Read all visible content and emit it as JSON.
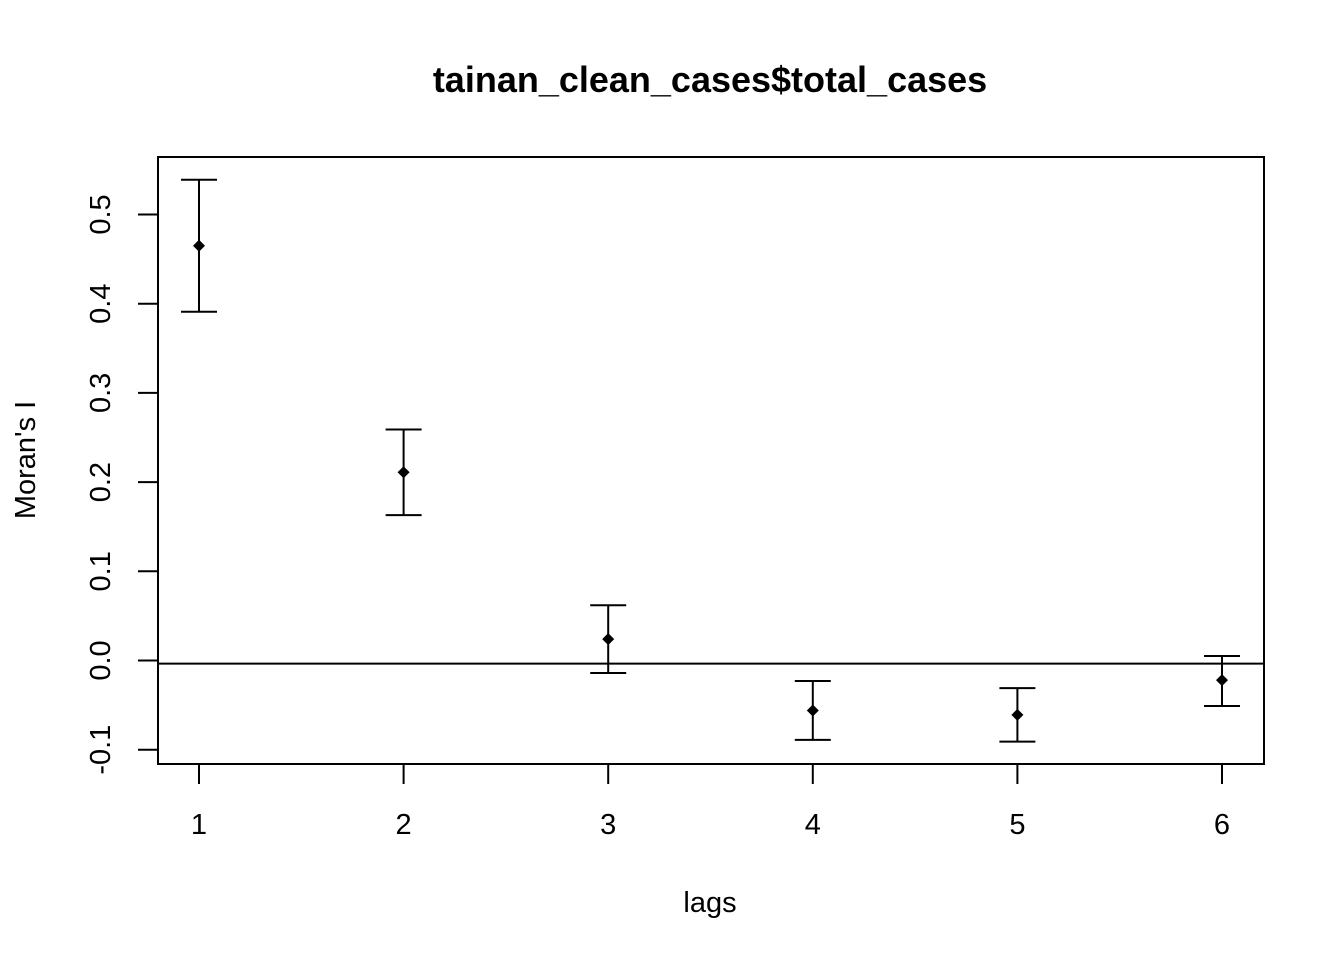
{
  "chart_data": {
    "type": "scatter",
    "title": "tainan_clean_cases$total_cases",
    "xlabel": "lags",
    "ylabel": "Moran's  I",
    "x_ticks": [
      "1",
      "2",
      "3",
      "4",
      "5",
      "6"
    ],
    "y_ticks": [
      "-0.1",
      "0.0",
      "0.1",
      "0.2",
      "0.3",
      "0.4",
      "0.5"
    ],
    "xlim": [
      0.8,
      6.2
    ],
    "ylim": [
      -0.115,
      0.565
    ],
    "reference_line": -0.0035,
    "points": [
      {
        "lag": 1,
        "value": 0.465,
        "lower": 0.391,
        "upper": 0.539
      },
      {
        "lag": 2,
        "value": 0.211,
        "lower": 0.163,
        "upper": 0.259
      },
      {
        "lag": 3,
        "value": 0.024,
        "lower": -0.014,
        "upper": 0.062
      },
      {
        "lag": 4,
        "value": -0.056,
        "lower": -0.089,
        "upper": -0.023
      },
      {
        "lag": 5,
        "value": -0.061,
        "lower": -0.091,
        "upper": -0.031
      },
      {
        "lag": 6,
        "value": -0.022,
        "lower": -0.051,
        "upper": 0.005
      }
    ],
    "grid": false,
    "legend": "none",
    "color": "#000000"
  }
}
